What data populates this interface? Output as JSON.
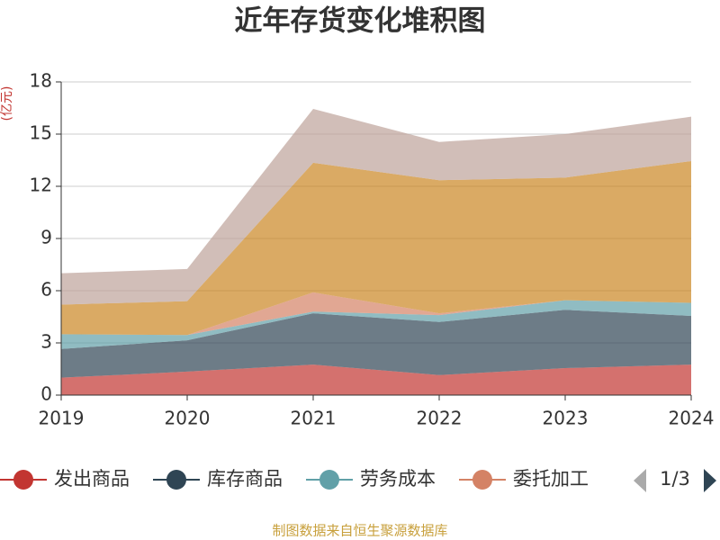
{
  "chart_data": {
    "type": "stacked_area",
    "title": "近年存货变化堆积图",
    "y_label": "(亿元)",
    "source": "制图数据来自恒生聚源数据库",
    "legend_page": "1/3",
    "categories": [
      "2019",
      "2020",
      "2021",
      "2022",
      "2023",
      "2024"
    ],
    "ylim": [
      0,
      18
    ],
    "yticks": [
      0,
      3,
      6,
      9,
      12,
      15,
      18
    ],
    "grid": true,
    "legend_position": "bottom",
    "series": [
      {
        "name": "发出商品",
        "color": "#c23531",
        "values": [
          1.0,
          1.35,
          1.75,
          1.15,
          1.55,
          1.75
        ]
      },
      {
        "name": "库存商品",
        "color": "#2f4554",
        "values": [
          1.65,
          1.8,
          2.95,
          3.05,
          3.35,
          2.8
        ]
      },
      {
        "name": "劳务成本",
        "color": "#61a0a8",
        "values": [
          0.85,
          0.3,
          0.1,
          0.4,
          0.55,
          0.75
        ]
      },
      {
        "name": "委托加工",
        "color": "#d48265",
        "values": [
          0,
          0,
          1.1,
          0.1,
          0,
          0
        ]
      },
      {
        "color": "#ca8622",
        "values": [
          1.7,
          1.95,
          7.45,
          7.65,
          7.05,
          8.15
        ]
      },
      {
        "color": "#bda29a",
        "values": [
          1.8,
          1.85,
          3.1,
          2.2,
          2.5,
          2.55
        ]
      }
    ]
  }
}
